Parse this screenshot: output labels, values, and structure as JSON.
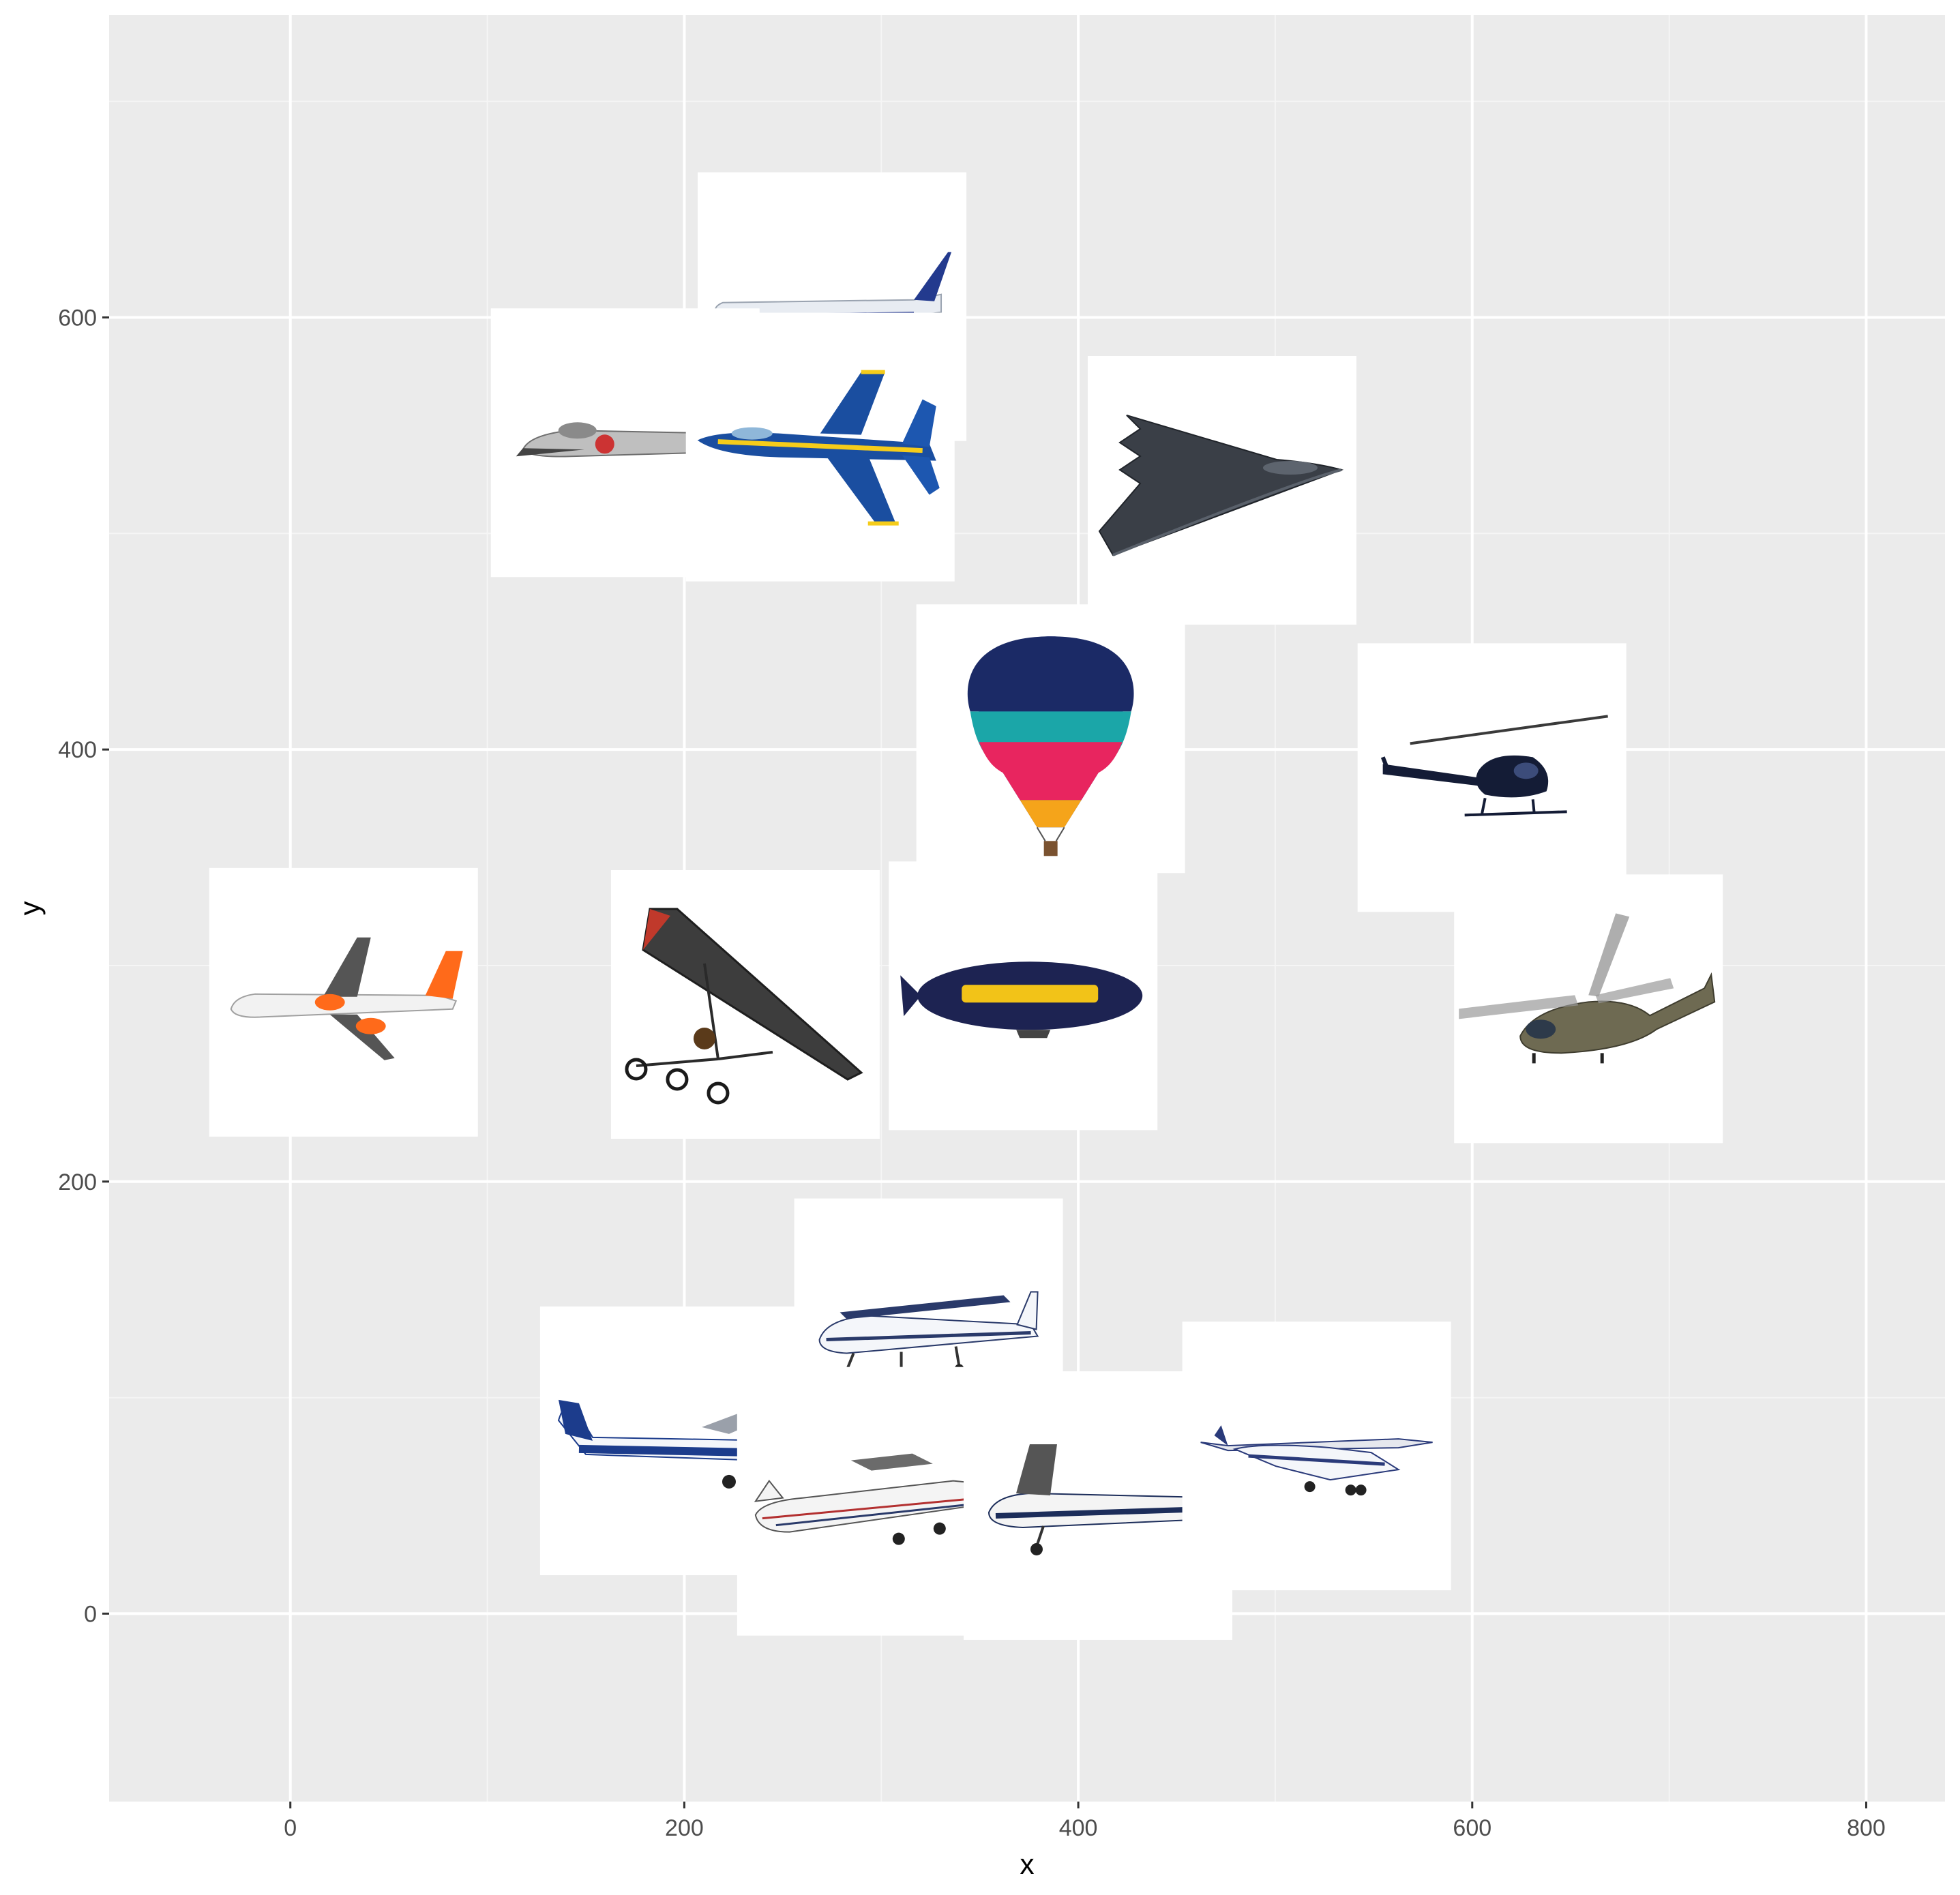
{
  "colors": {
    "panel_background": "#EBEBEB",
    "grid_major": "#FFFFFF",
    "grid_minor": "#F5F5F5",
    "thumbnail_background": "#FFFFFF",
    "tick_text": "#4D4D4D"
  },
  "chart_data": {
    "type": "scatter",
    "marker": "image",
    "title": "",
    "xlabel": "x",
    "ylabel": "y",
    "xlim": [
      -92,
      840
    ],
    "ylim": [
      -87,
      740
    ],
    "x_ticks": [
      0,
      200,
      400,
      600,
      800
    ],
    "y_ticks": [
      0,
      200,
      400,
      600
    ],
    "x_tick_labels": [
      "0",
      "200",
      "400",
      "600",
      "800"
    ],
    "y_tick_labels": [
      "0",
      "200",
      "400",
      "600"
    ],
    "grid": true,
    "legend": "none",
    "points": [
      {
        "x": 275,
        "y": 605,
        "icon": "passenger-jet-blue-tail"
      },
      {
        "x": 170,
        "y": 542,
        "icon": "vintage-jet-fighter"
      },
      {
        "x": 269,
        "y": 540,
        "icon": "fighter-jet-blue-yellow"
      },
      {
        "x": 473,
        "y": 520,
        "icon": "stealth-bomber"
      },
      {
        "x": 386,
        "y": 405,
        "icon": "hot-air-balloon"
      },
      {
        "x": 610,
        "y": 387,
        "icon": "helicopter-black"
      },
      {
        "x": 27,
        "y": 283,
        "icon": "airliner-orange-tail"
      },
      {
        "x": 231,
        "y": 282,
        "icon": "microlight-trike"
      },
      {
        "x": 372,
        "y": 286,
        "icon": "goodyear-blimp"
      },
      {
        "x": 659,
        "y": 280,
        "icon": "helicopter-camouflage"
      },
      {
        "x": 324,
        "y": 130,
        "icon": "cessna-tail-n35f5"
      },
      {
        "x": 195,
        "y": 80,
        "icon": "cessna-s2-aex"
      },
      {
        "x": 295,
        "y": 52,
        "icon": "cessna-g-jmke"
      },
      {
        "x": 410,
        "y": 50,
        "icon": "cessna-d-eowi"
      },
      {
        "x": 521,
        "y": 73,
        "icon": "cessna-high-wing-blue"
      }
    ]
  }
}
